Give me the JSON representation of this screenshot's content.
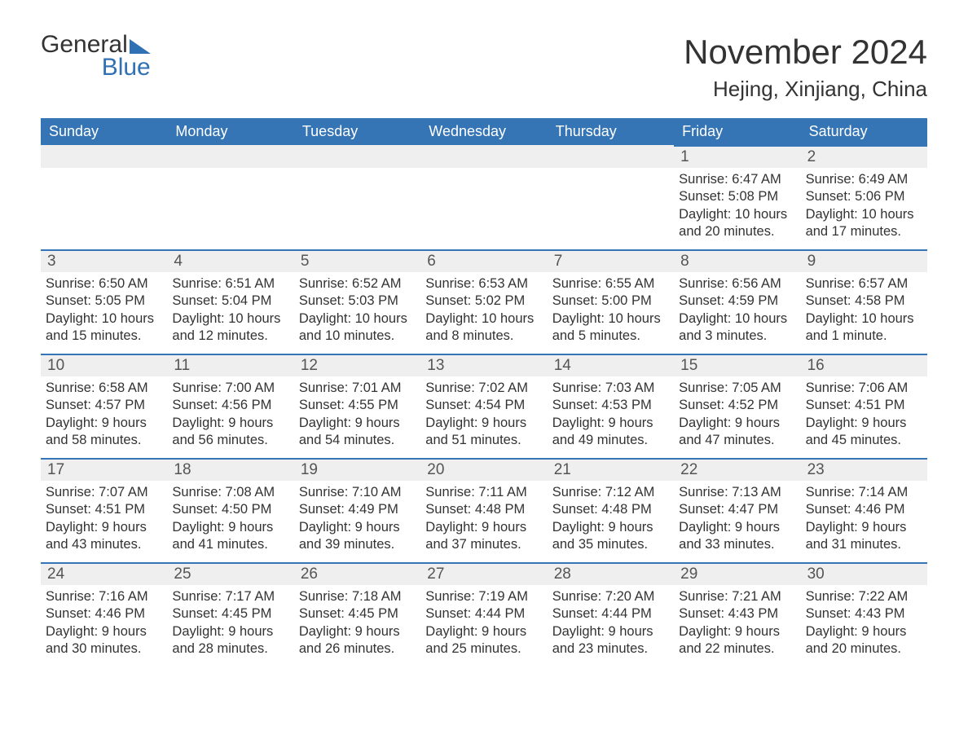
{
  "logo": {
    "word1": "General",
    "word2": "Blue"
  },
  "title": "November 2024",
  "location": "Hejing, Xinjiang, China",
  "colors": {
    "header_bg": "#3574b5",
    "header_text": "#ffffff",
    "date_bg": "#efefef",
    "date_border": "#3574b5",
    "body_text": "#333333",
    "logo_blue": "#2f71b4",
    "background": "#ffffff"
  },
  "day_names": [
    "Sunday",
    "Monday",
    "Tuesday",
    "Wednesday",
    "Thursday",
    "Friday",
    "Saturday"
  ],
  "first_weekday_index": 5,
  "days": [
    {
      "n": 1,
      "sunrise": "6:47 AM",
      "sunset": "5:08 PM",
      "daylight": "10 hours and 20 minutes."
    },
    {
      "n": 2,
      "sunrise": "6:49 AM",
      "sunset": "5:06 PM",
      "daylight": "10 hours and 17 minutes."
    },
    {
      "n": 3,
      "sunrise": "6:50 AM",
      "sunset": "5:05 PM",
      "daylight": "10 hours and 15 minutes."
    },
    {
      "n": 4,
      "sunrise": "6:51 AM",
      "sunset": "5:04 PM",
      "daylight": "10 hours and 12 minutes."
    },
    {
      "n": 5,
      "sunrise": "6:52 AM",
      "sunset": "5:03 PM",
      "daylight": "10 hours and 10 minutes."
    },
    {
      "n": 6,
      "sunrise": "6:53 AM",
      "sunset": "5:02 PM",
      "daylight": "10 hours and 8 minutes."
    },
    {
      "n": 7,
      "sunrise": "6:55 AM",
      "sunset": "5:00 PM",
      "daylight": "10 hours and 5 minutes."
    },
    {
      "n": 8,
      "sunrise": "6:56 AM",
      "sunset": "4:59 PM",
      "daylight": "10 hours and 3 minutes."
    },
    {
      "n": 9,
      "sunrise": "6:57 AM",
      "sunset": "4:58 PM",
      "daylight": "10 hours and 1 minute."
    },
    {
      "n": 10,
      "sunrise": "6:58 AM",
      "sunset": "4:57 PM",
      "daylight": "9 hours and 58 minutes."
    },
    {
      "n": 11,
      "sunrise": "7:00 AM",
      "sunset": "4:56 PM",
      "daylight": "9 hours and 56 minutes."
    },
    {
      "n": 12,
      "sunrise": "7:01 AM",
      "sunset": "4:55 PM",
      "daylight": "9 hours and 54 minutes."
    },
    {
      "n": 13,
      "sunrise": "7:02 AM",
      "sunset": "4:54 PM",
      "daylight": "9 hours and 51 minutes."
    },
    {
      "n": 14,
      "sunrise": "7:03 AM",
      "sunset": "4:53 PM",
      "daylight": "9 hours and 49 minutes."
    },
    {
      "n": 15,
      "sunrise": "7:05 AM",
      "sunset": "4:52 PM",
      "daylight": "9 hours and 47 minutes."
    },
    {
      "n": 16,
      "sunrise": "7:06 AM",
      "sunset": "4:51 PM",
      "daylight": "9 hours and 45 minutes."
    },
    {
      "n": 17,
      "sunrise": "7:07 AM",
      "sunset": "4:51 PM",
      "daylight": "9 hours and 43 minutes."
    },
    {
      "n": 18,
      "sunrise": "7:08 AM",
      "sunset": "4:50 PM",
      "daylight": "9 hours and 41 minutes."
    },
    {
      "n": 19,
      "sunrise": "7:10 AM",
      "sunset": "4:49 PM",
      "daylight": "9 hours and 39 minutes."
    },
    {
      "n": 20,
      "sunrise": "7:11 AM",
      "sunset": "4:48 PM",
      "daylight": "9 hours and 37 minutes."
    },
    {
      "n": 21,
      "sunrise": "7:12 AM",
      "sunset": "4:48 PM",
      "daylight": "9 hours and 35 minutes."
    },
    {
      "n": 22,
      "sunrise": "7:13 AM",
      "sunset": "4:47 PM",
      "daylight": "9 hours and 33 minutes."
    },
    {
      "n": 23,
      "sunrise": "7:14 AM",
      "sunset": "4:46 PM",
      "daylight": "9 hours and 31 minutes."
    },
    {
      "n": 24,
      "sunrise": "7:16 AM",
      "sunset": "4:46 PM",
      "daylight": "9 hours and 30 minutes."
    },
    {
      "n": 25,
      "sunrise": "7:17 AM",
      "sunset": "4:45 PM",
      "daylight": "9 hours and 28 minutes."
    },
    {
      "n": 26,
      "sunrise": "7:18 AM",
      "sunset": "4:45 PM",
      "daylight": "9 hours and 26 minutes."
    },
    {
      "n": 27,
      "sunrise": "7:19 AM",
      "sunset": "4:44 PM",
      "daylight": "9 hours and 25 minutes."
    },
    {
      "n": 28,
      "sunrise": "7:20 AM",
      "sunset": "4:44 PM",
      "daylight": "9 hours and 23 minutes."
    },
    {
      "n": 29,
      "sunrise": "7:21 AM",
      "sunset": "4:43 PM",
      "daylight": "9 hours and 22 minutes."
    },
    {
      "n": 30,
      "sunrise": "7:22 AM",
      "sunset": "4:43 PM",
      "daylight": "9 hours and 20 minutes."
    }
  ],
  "labels": {
    "sunrise": "Sunrise:",
    "sunset": "Sunset:",
    "daylight": "Daylight:"
  }
}
